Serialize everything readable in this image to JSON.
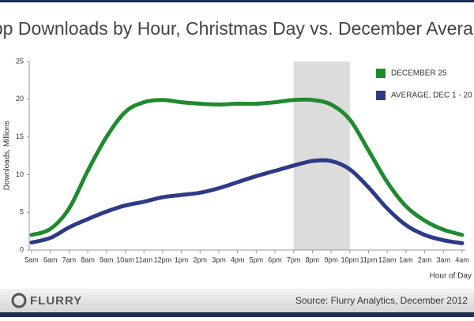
{
  "chart_data": {
    "type": "line",
    "title": "App Downloads by Hour, Christmas Day vs. December Average",
    "y_label": "Downloads, Millions",
    "x_label": "Hour of Day",
    "categories": [
      "5am",
      "6am",
      "7am",
      "8am",
      "9am",
      "10am",
      "11am",
      "12pm",
      "1pm",
      "2pm",
      "3pm",
      "4pm",
      "5pm",
      "6pm",
      "7pm",
      "8pm",
      "9pm",
      "10pm",
      "11pm",
      "12am",
      "1am",
      "2am",
      "3am",
      "4am"
    ],
    "series": [
      {
        "name": "DECEMBER 25",
        "color": "#1f8a2f",
        "values": [
          2.0,
          2.8,
          5.5,
          10.5,
          15.0,
          18.3,
          19.6,
          19.9,
          19.6,
          19.4,
          19.3,
          19.4,
          19.4,
          19.6,
          19.9,
          19.9,
          19.3,
          17.3,
          13.2,
          9.0,
          5.8,
          3.9,
          2.7,
          2.0
        ]
      },
      {
        "name": "AVERAGE, DEC 1 - 20",
        "color": "#2d3a86",
        "values": [
          1.0,
          1.6,
          3.0,
          4.1,
          5.1,
          5.9,
          6.4,
          7.0,
          7.3,
          7.6,
          8.2,
          9.0,
          9.8,
          10.5,
          11.2,
          11.8,
          11.8,
          10.7,
          8.3,
          5.5,
          3.3,
          2.0,
          1.3,
          0.9
        ]
      }
    ],
    "highlight": [
      14,
      17
    ],
    "highlight_color": "#dcdcdc",
    "ylim": [
      0,
      25
    ],
    "yticks": [
      0,
      5,
      10,
      15,
      20,
      25
    ],
    "legend": "upper right"
  },
  "footer": {
    "logo": "FLURRY",
    "source": "Source: Flurry Analytics, December 2012"
  }
}
